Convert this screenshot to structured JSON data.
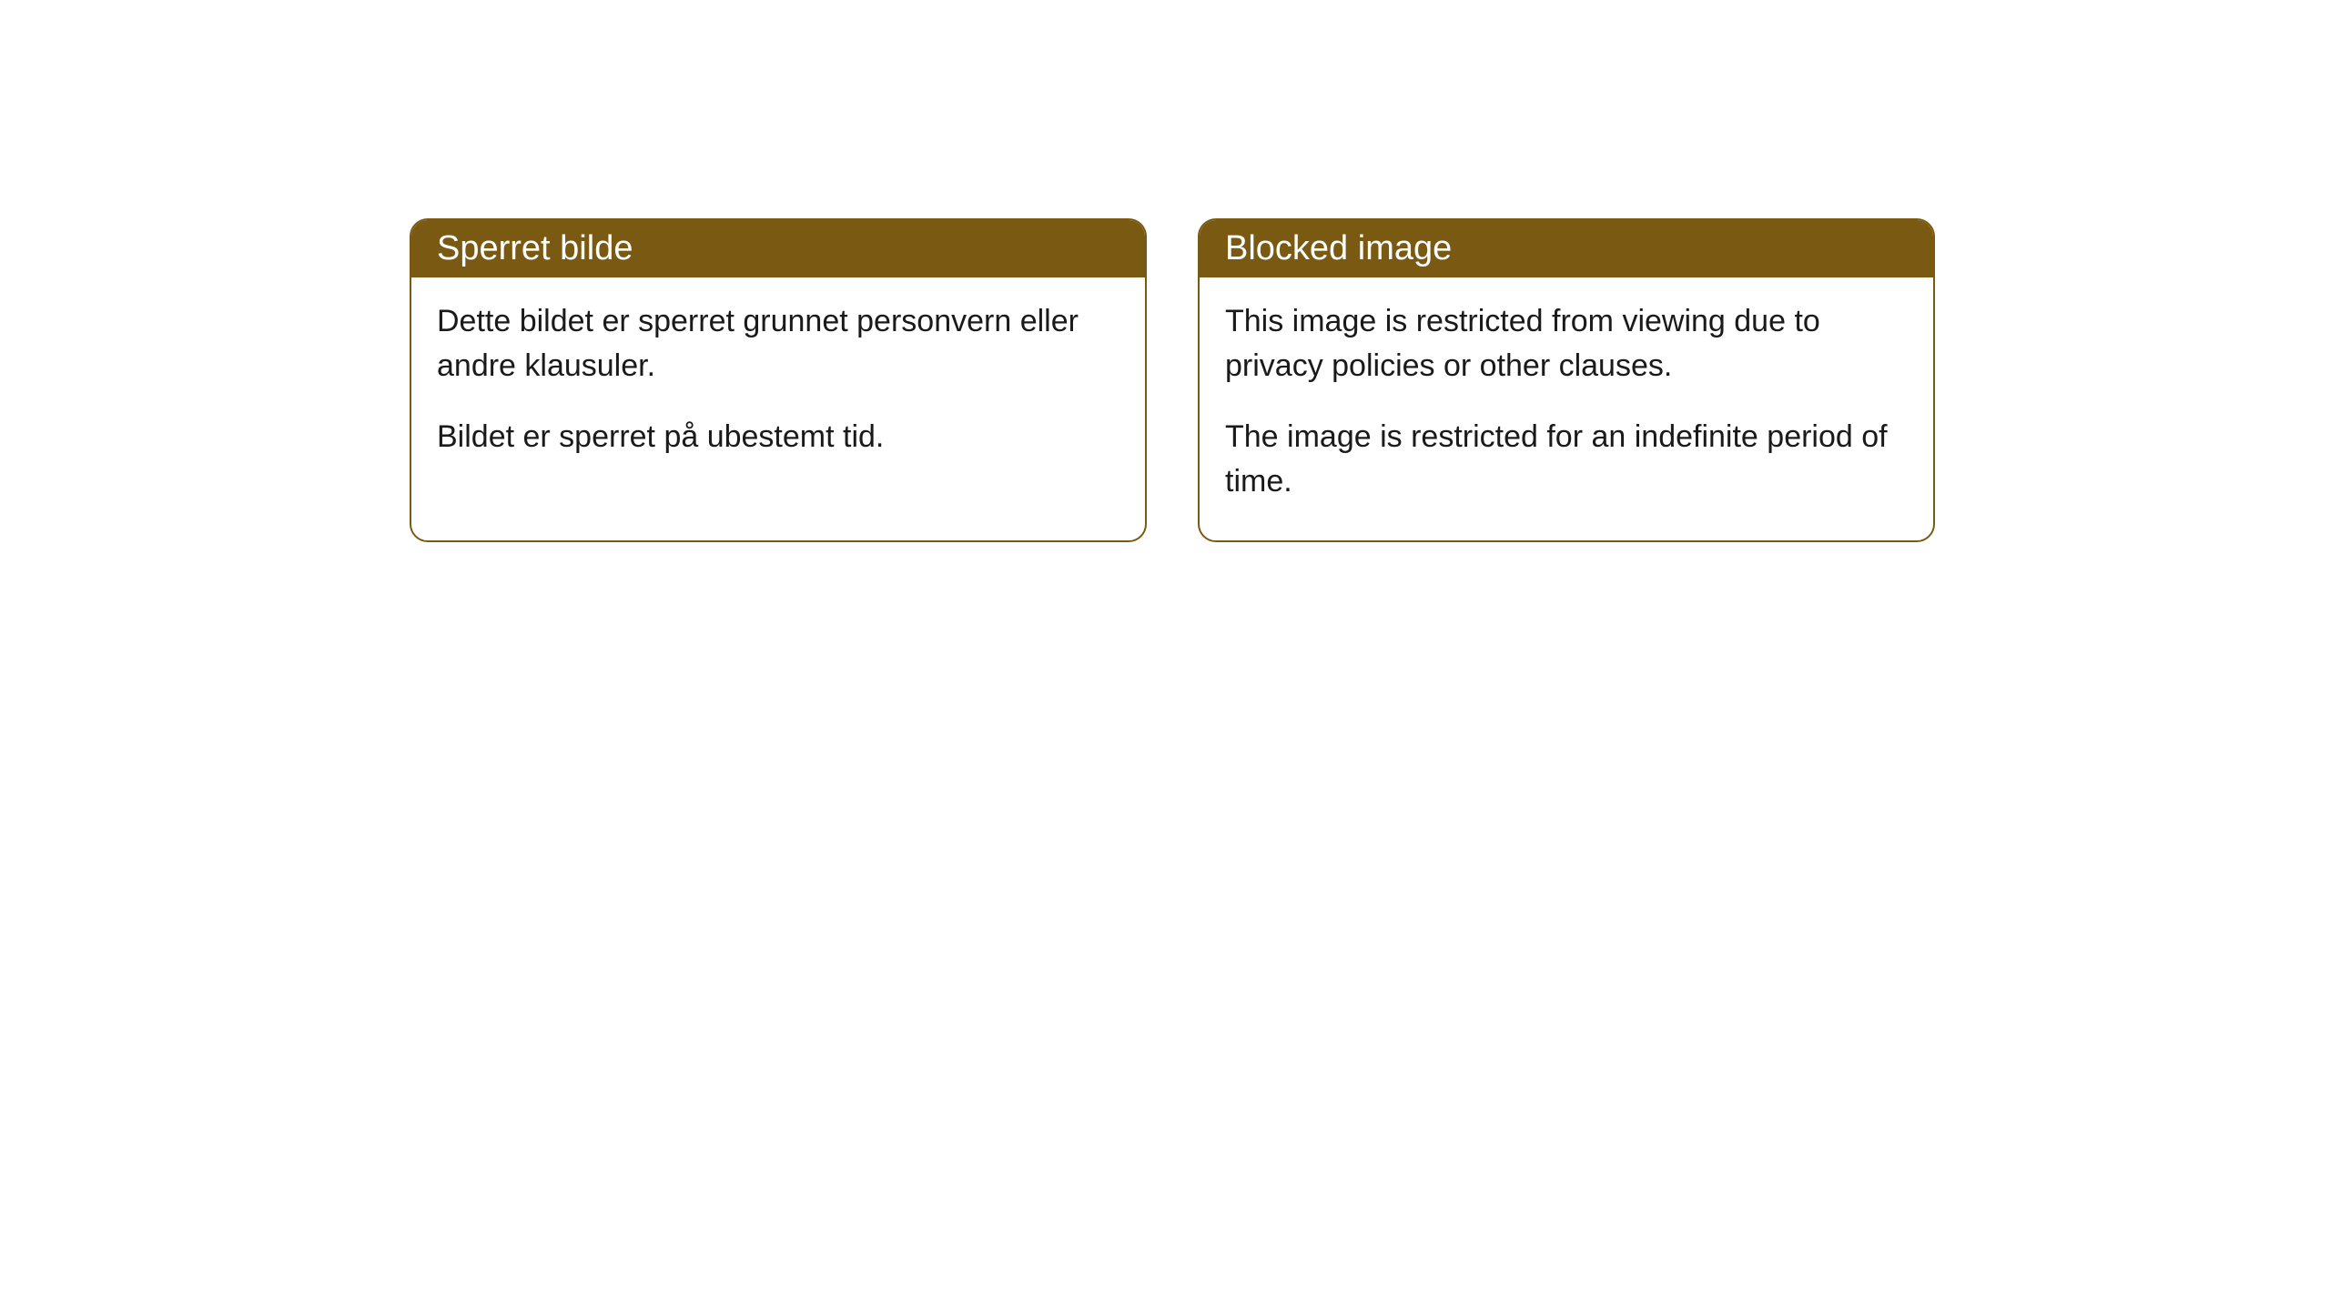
{
  "cards": [
    {
      "title": "Sperret bilde",
      "para1": "Dette bildet er sperret grunnet personvern eller andre klausuler.",
      "para2": "Bildet er sperret på ubestemt tid."
    },
    {
      "title": "Blocked image",
      "para1": "This image is restricted from viewing due to privacy policies or other clauses.",
      "para2": "The image is restricted for an indefinite period of time."
    }
  ],
  "colors": {
    "header_bg": "#7a5a12",
    "header_text": "#ffffff",
    "border": "#7a5a12",
    "body_bg": "#ffffff",
    "body_text": "#1a1a1a"
  }
}
